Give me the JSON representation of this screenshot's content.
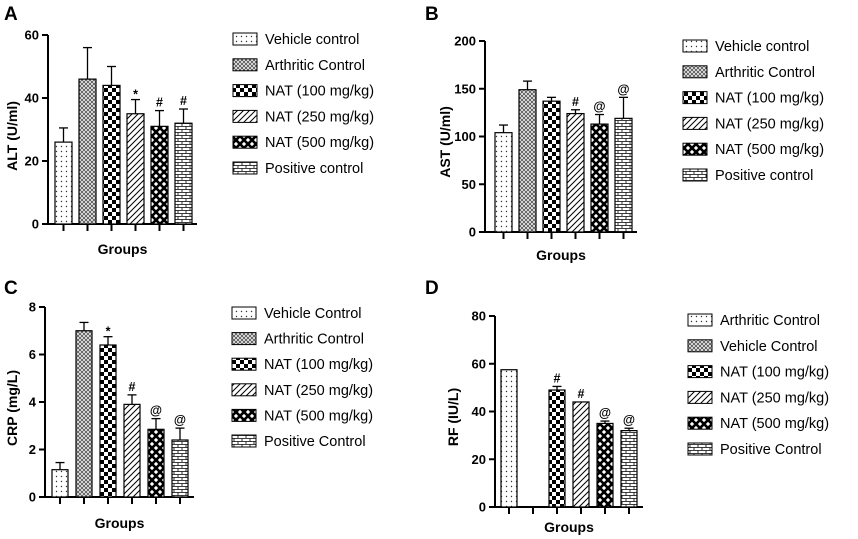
{
  "chart_data": [
    {
      "panel": "A",
      "type": "bar",
      "ylabel": "ALT (U/ml)",
      "xlabel": "Groups",
      "ylim": [
        0,
        60
      ],
      "yticks": [
        0,
        20,
        40,
        60
      ],
      "categories": [
        "Vehicle control",
        "Arthritic Control",
        "NAT (100 mg/kg)",
        "NAT (250 mg/kg)",
        "NAT (500 mg/kg)",
        "Positive control"
      ],
      "values": [
        26,
        46,
        44,
        35,
        31,
        32
      ],
      "errors": [
        4.5,
        10,
        6,
        4.5,
        5,
        4.5
      ],
      "significance": [
        "",
        "",
        "",
        "*",
        "#",
        "#"
      ]
    },
    {
      "panel": "B",
      "type": "bar",
      "ylabel": "AST (U/ml)",
      "xlabel": "Groups",
      "ylim": [
        0,
        200
      ],
      "yticks": [
        0,
        50,
        100,
        150,
        200
      ],
      "categories": [
        "Vehicle control",
        "Arthritic Control",
        "NAT (100 mg/kg)",
        "NAT (250 mg/kg)",
        "NAT (500 mg/kg)",
        "Positive control"
      ],
      "values": [
        104,
        149,
        137,
        124,
        113,
        119
      ],
      "errors": [
        8,
        9,
        4,
        4,
        10,
        22
      ],
      "significance": [
        "",
        "",
        "",
        "#",
        "@",
        "@"
      ]
    },
    {
      "panel": "C",
      "type": "bar",
      "ylabel": "CRP (mg/L)",
      "xlabel": "Groups",
      "ylim": [
        0,
        8
      ],
      "yticks": [
        0,
        2,
        4,
        6,
        8
      ],
      "categories": [
        "Vehicle Control",
        "Arthritic Control",
        "NAT (100 mg/kg)",
        "NAT (250 mg/kg)",
        "NAT (500 mg/kg)",
        "Positive Control"
      ],
      "values": [
        1.15,
        7.0,
        6.4,
        3.9,
        2.85,
        2.4
      ],
      "errors": [
        0.3,
        0.35,
        0.35,
        0.4,
        0.45,
        0.5
      ],
      "significance": [
        "",
        "",
        "*",
        "#",
        "@",
        "@"
      ]
    },
    {
      "panel": "D",
      "type": "bar",
      "ylabel": "RF (IU/L)",
      "xlabel": "Groups",
      "ylim": [
        0,
        80
      ],
      "yticks": [
        0,
        20,
        40,
        60,
        80
      ],
      "categories": [
        "Arthritic Control",
        "Vehicle Control",
        "NAT (100 mg/kg)",
        "NAT (250 mg/kg)",
        "NAT (500 mg/kg)",
        "Positive Control"
      ],
      "values": [
        57.5,
        0,
        49,
        44,
        35,
        32
      ],
      "errors": [
        0,
        0,
        1.5,
        0,
        1,
        1
      ],
      "significance": [
        "",
        "",
        "#",
        "#",
        "@",
        "@"
      ]
    }
  ]
}
